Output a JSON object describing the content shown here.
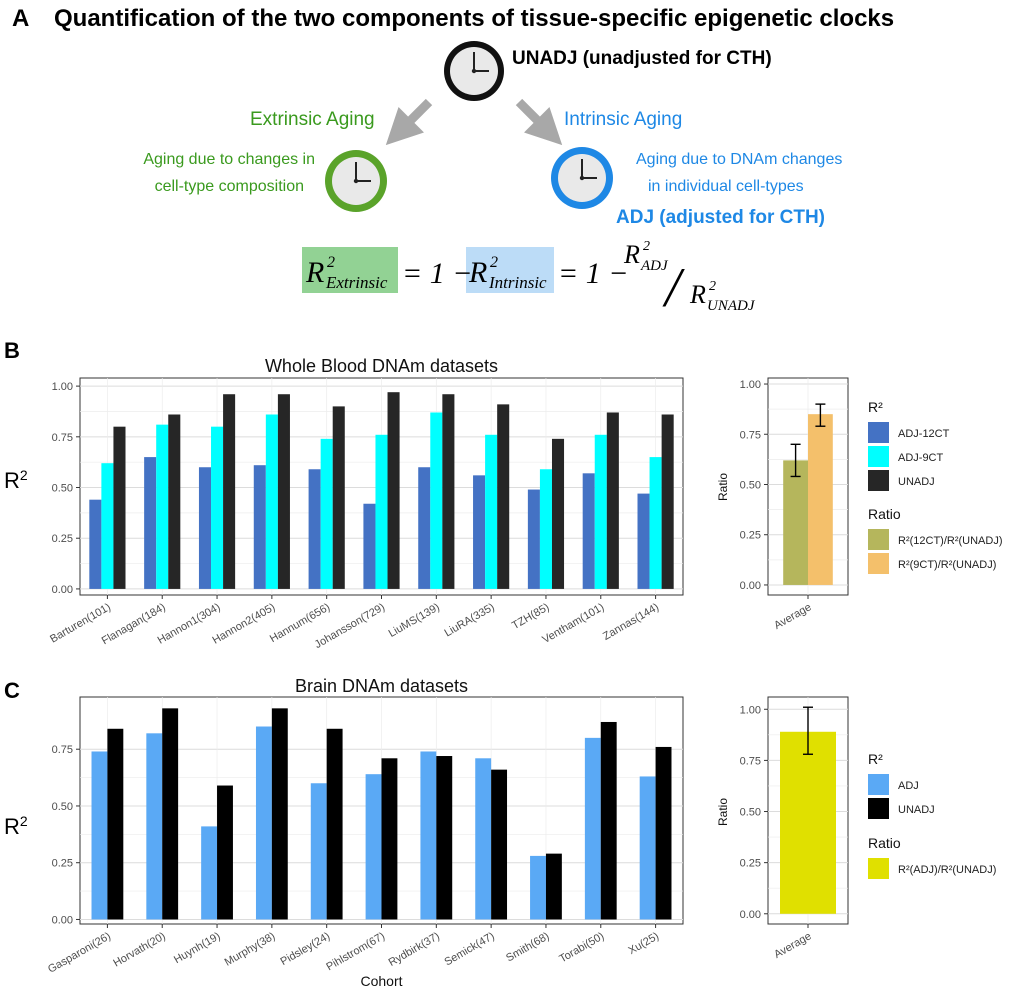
{
  "panel_a": {
    "letter": "A",
    "title": "Quantification of the two components of tissue-specific epigenetic clocks",
    "unadj_label": "UNADJ (unadjusted for CTH)",
    "extrinsic_title": "Extrinsic Aging",
    "extrinsic_desc": [
      "Aging due to changes in",
      "cell-type composition"
    ],
    "intrinsic_title": "Intrinsic Aging",
    "intrinsic_desc": [
      "Aging due to DNAm changes",
      "in individual cell-types"
    ],
    "adj_label": "ADJ (adjusted for CTH)",
    "formula": {
      "r": "R",
      "sq": "2",
      "extrinsic_sub": "Extrinsic",
      "intrinsic_sub": "Intrinsic",
      "adj_sub": "ADJ",
      "unadj_sub": "UNADJ",
      "eq_one": "= 1 −",
      "slash": "/"
    },
    "colors": {
      "extrinsic": "#3a9a1e",
      "intrinsic": "#1e88e5",
      "extrinsic_box": "#92d294",
      "intrinsic_box": "#bcdcf7",
      "arrow": "#a8a8a8"
    }
  },
  "panel_b": {
    "letter": "B",
    "ylabel_main": "R",
    "ylabel_sup": "2"
  },
  "panel_c": {
    "letter": "C",
    "ylabel_main": "R",
    "ylabel_sup": "2"
  },
  "chart_data": [
    {
      "id": "whole_blood",
      "type": "bar",
      "title": "Whole Blood DNAm datasets",
      "ylabel": "R2",
      "xlabel": "",
      "ylim": [
        -0.03,
        1.04
      ],
      "yticks": [
        0.0,
        0.25,
        0.5,
        0.75,
        1.0
      ],
      "tick_labels": [
        "0.00",
        "0.25",
        "0.50",
        "0.75",
        "1.00"
      ],
      "categories": [
        "Barturen(101)",
        "Flanagan(184)",
        "Hannon1(304)",
        "Hannon2(405)",
        "Hannum(656)",
        "Johansson(729)",
        "LiuMS(139)",
        "LiuRA(335)",
        "TZH(85)",
        "Ventham(101)",
        "Zannas(144)"
      ],
      "series": [
        {
          "name": "ADJ-12CT",
          "color": "#4472c4",
          "values": [
            0.44,
            0.65,
            0.6,
            0.61,
            0.59,
            0.42,
            0.6,
            0.56,
            0.49,
            0.57,
            0.47
          ]
        },
        {
          "name": "ADJ-9CT",
          "color": "#00ffff",
          "values": [
            0.62,
            0.81,
            0.8,
            0.86,
            0.74,
            0.76,
            0.87,
            0.76,
            0.59,
            0.76,
            0.65
          ]
        },
        {
          "name": "UNADJ",
          "color": "#262626",
          "values": [
            0.8,
            0.86,
            0.96,
            0.96,
            0.9,
            0.97,
            0.96,
            0.91,
            0.74,
            0.87,
            0.86
          ]
        }
      ],
      "legend_title": "R²",
      "grid": true
    },
    {
      "id": "whole_blood_ratio",
      "type": "bar",
      "title": "",
      "ylabel": "Ratio",
      "xlabel": "",
      "ylim": [
        -0.05,
        1.03
      ],
      "yticks": [
        0.0,
        0.25,
        0.5,
        0.75,
        1.0
      ],
      "tick_labels": [
        "0.00",
        "0.25",
        "0.50",
        "0.75",
        "1.00"
      ],
      "categories": [
        "Average"
      ],
      "series": [
        {
          "name": "R²(12CT)/R²(UNADJ)",
          "color": "#b5b65c",
          "values": [
            0.62
          ],
          "error": [
            0.54,
            0.7
          ]
        },
        {
          "name": "R²(9CT)/R²(UNADJ)",
          "color": "#f4c06b",
          "values": [
            0.85
          ],
          "error": [
            0.79,
            0.9
          ]
        }
      ],
      "legend_title": "Ratio",
      "grid": true
    },
    {
      "id": "brain",
      "type": "bar",
      "title": "Brain DNAm datasets",
      "ylabel": "R2",
      "xlabel": "Cohort",
      "ylim": [
        -0.02,
        0.98
      ],
      "yticks": [
        0.0,
        0.25,
        0.5,
        0.75
      ],
      "tick_labels": [
        "0.00",
        "0.25",
        "0.50",
        "0.75"
      ],
      "categories": [
        "Gasparoni(26)",
        "Horvath(20)",
        "Huynh(19)",
        "Murphy(38)",
        "Pidsley(24)",
        "Pihlstrom(67)",
        "Rydbirk(37)",
        "Semick(47)",
        "Smith(68)",
        "Torabi(50)",
        "Xu(25)"
      ],
      "series": [
        {
          "name": "ADJ",
          "color": "#5aa9f5",
          "values": [
            0.74,
            0.82,
            0.41,
            0.85,
            0.6,
            0.64,
            0.74,
            0.71,
            0.28,
            0.8,
            0.63
          ]
        },
        {
          "name": "UNADJ",
          "color": "#000000",
          "values": [
            0.84,
            0.93,
            0.59,
            0.93,
            0.84,
            0.71,
            0.72,
            0.66,
            0.29,
            0.87,
            0.76
          ]
        }
      ],
      "legend_title": "R²",
      "grid": true
    },
    {
      "id": "brain_ratio",
      "type": "bar",
      "title": "",
      "ylabel": "Ratio",
      "xlabel": "",
      "ylim": [
        -0.05,
        1.06
      ],
      "yticks": [
        0.0,
        0.25,
        0.5,
        0.75,
        1.0
      ],
      "tick_labels": [
        "0.00",
        "0.25",
        "0.50",
        "0.75",
        "1.00"
      ],
      "categories": [
        "Average"
      ],
      "series": [
        {
          "name": "R²(ADJ)/R²(UNADJ)",
          "color": "#e0e000",
          "values": [
            0.89
          ],
          "error": [
            0.78,
            1.01
          ]
        }
      ],
      "legend_title": "Ratio",
      "grid": true
    }
  ]
}
